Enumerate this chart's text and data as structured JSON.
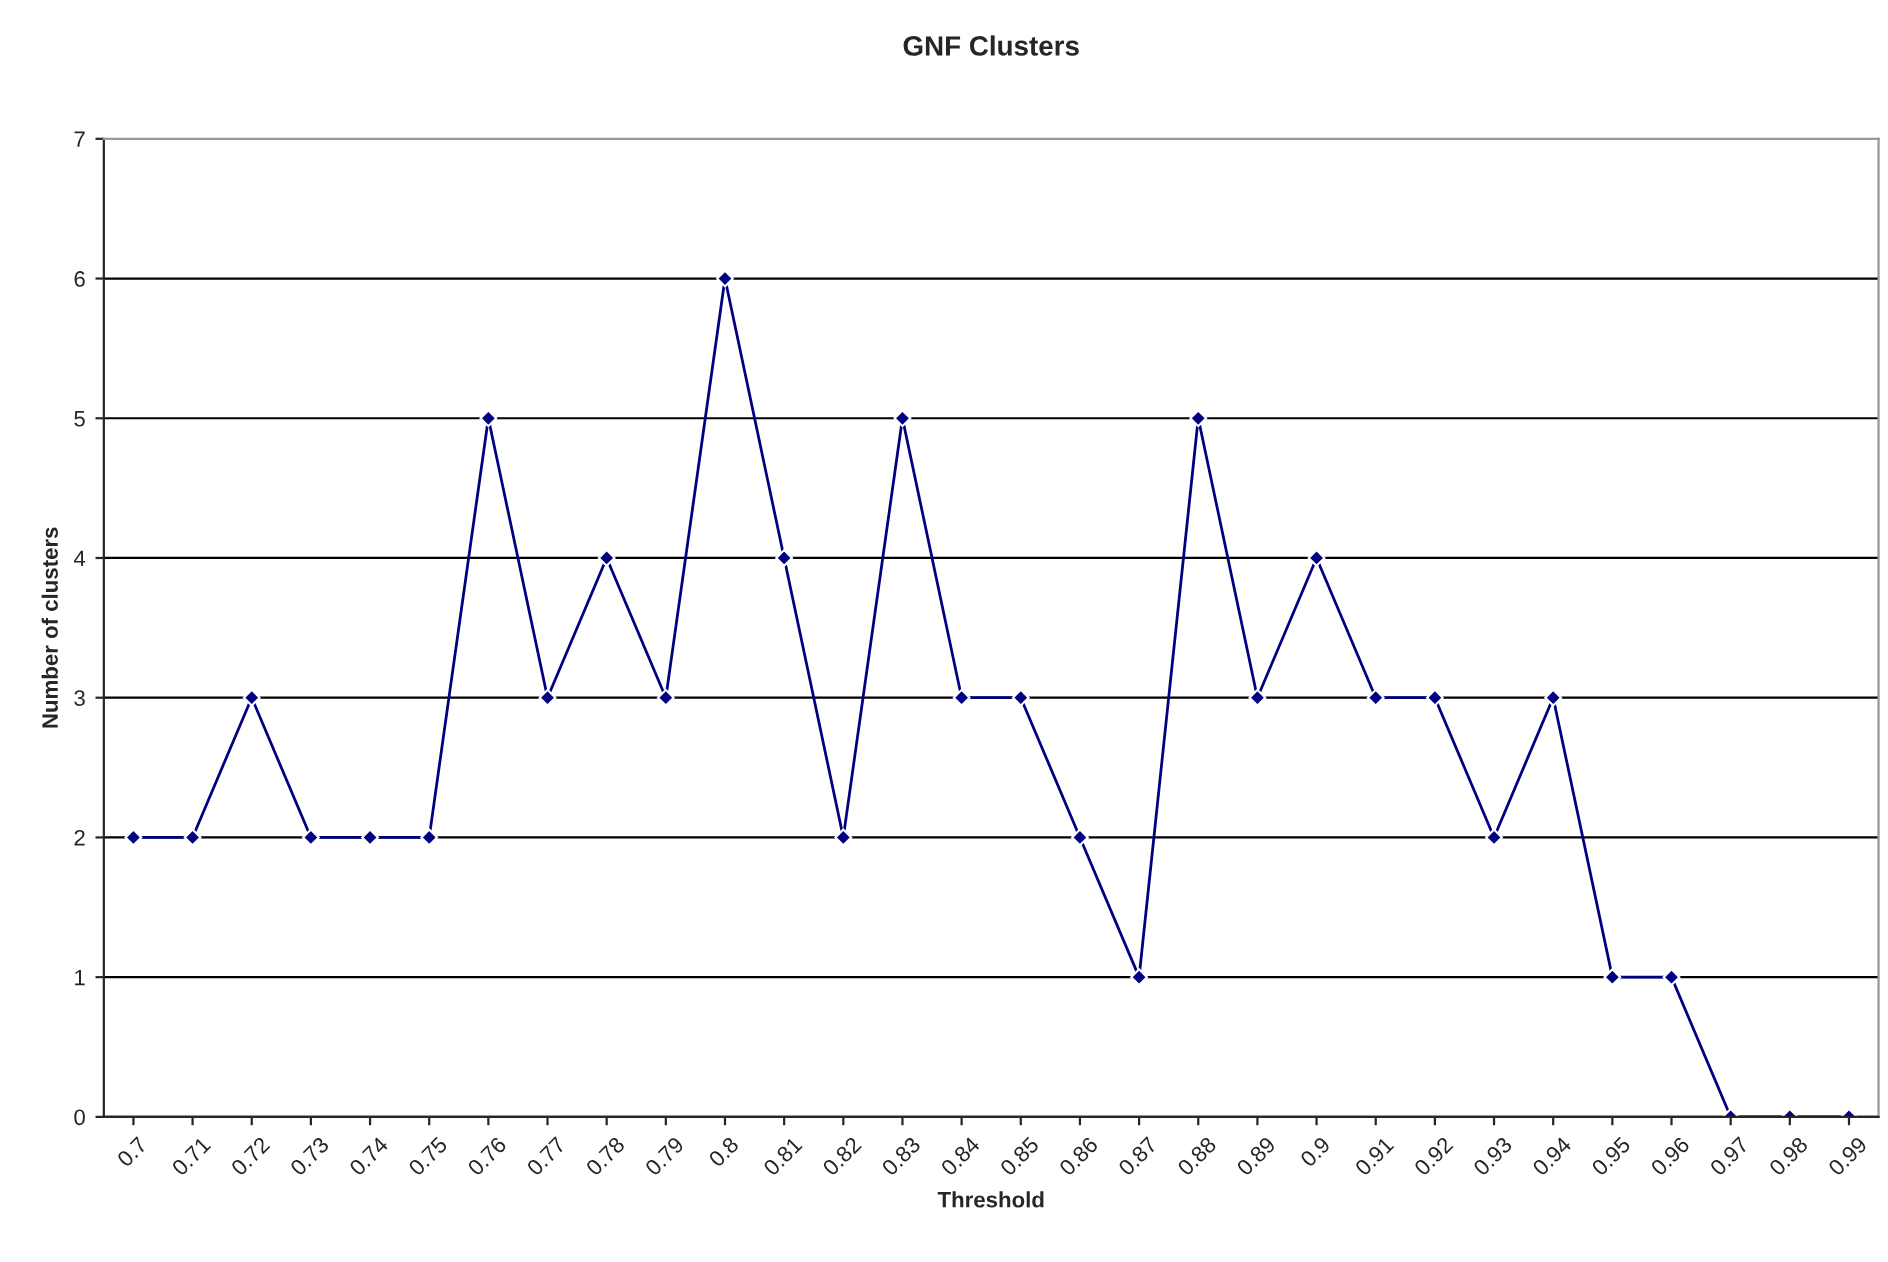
{
  "chart_data": {
    "type": "line",
    "title": "GNF Clusters",
    "xlabel": "Threshold",
    "ylabel": "Number of clusters",
    "categories": [
      "0.7",
      "0.71",
      "0.72",
      "0.73",
      "0.74",
      "0.75",
      "0.76",
      "0.77",
      "0.78",
      "0.79",
      "0.8",
      "0.81",
      "0.82",
      "0.83",
      "0.84",
      "0.85",
      "0.86",
      "0.87",
      "0.88",
      "0.89",
      "0.9",
      "0.91",
      "0.92",
      "0.93",
      "0.94",
      "0.95",
      "0.96",
      "0.97",
      "0.98",
      "0.99"
    ],
    "series": [
      {
        "color": "#000080",
        "values": [
          2,
          2,
          3,
          2,
          2,
          2,
          5,
          3,
          4,
          3,
          6,
          4,
          2,
          5,
          3,
          3,
          2,
          1,
          5,
          3,
          4,
          3,
          3,
          2,
          3,
          1,
          1,
          0,
          0,
          0
        ]
      }
    ],
    "ylim": [
      0,
      7
    ],
    "yticks": [
      0,
      1,
      2,
      3,
      4,
      5,
      6,
      7
    ],
    "grid": "y",
    "legend": false,
    "marker": "diamond",
    "line_style": "solid"
  }
}
